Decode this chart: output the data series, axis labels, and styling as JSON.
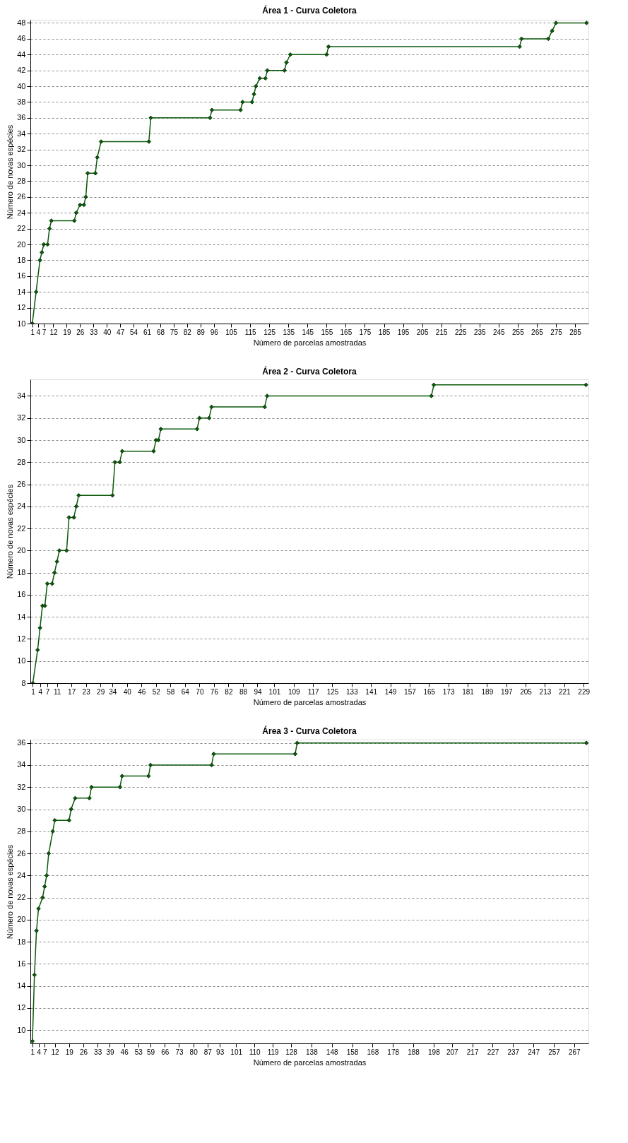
{
  "chart_data": [
    {
      "type": "line",
      "title": "Área 1 - Curva Coletora",
      "xlabel": "Número de parcelas amostradas",
      "ylabel": "Número de novas espécies",
      "marker": "diamond",
      "line_style": "solid",
      "grid": "y",
      "xlim": [
        0,
        292
      ],
      "ylim": [
        10,
        48.4
      ],
      "xticks": [
        1,
        4,
        7,
        12,
        19,
        26,
        33,
        40,
        47,
        54,
        61,
        68,
        75,
        82,
        89,
        96,
        105,
        115,
        125,
        135,
        145,
        155,
        165,
        175,
        185,
        195,
        205,
        215,
        225,
        235,
        245,
        255,
        265,
        275,
        285
      ],
      "yticks": [
        10,
        12,
        14,
        16,
        18,
        20,
        22,
        24,
        26,
        28,
        30,
        32,
        34,
        36,
        38,
        40,
        42,
        44,
        46,
        48
      ],
      "series": [
        {
          "color": "#0b5a0b",
          "x": [
            1,
            3,
            5,
            6,
            7,
            9,
            10,
            11,
            23,
            24,
            26,
            28,
            29,
            30,
            34,
            35,
            37,
            62,
            63,
            94,
            95,
            110,
            111,
            116,
            117,
            118,
            120,
            123,
            124,
            133,
            134,
            136,
            155,
            156,
            256,
            257,
            271,
            273,
            275,
            291
          ],
          "values": [
            10,
            14,
            18,
            19,
            20,
            20,
            22,
            23,
            23,
            24,
            25,
            25,
            26,
            29,
            29,
            31,
            33,
            33,
            36,
            36,
            37,
            37,
            38,
            38,
            39,
            40,
            41,
            41,
            42,
            42,
            43,
            44,
            44,
            45,
            45,
            46,
            46,
            47,
            48,
            48
          ]
        }
      ]
    },
    {
      "type": "line",
      "title": "Área 2 - Curva Coletora",
      "xlabel": "Número de parcelas amostradas",
      "ylabel": "Número de novas espécies",
      "marker": "diamond",
      "line_style": "solid",
      "grid": "y",
      "xlim": [
        0,
        231
      ],
      "ylim": [
        8,
        35.5
      ],
      "xticks": [
        1,
        4,
        7,
        11,
        17,
        23,
        29,
        34,
        40,
        46,
        52,
        58,
        64,
        70,
        76,
        82,
        88,
        94,
        101,
        109,
        117,
        125,
        133,
        141,
        149,
        157,
        165,
        173,
        181,
        189,
        197,
        205,
        213,
        221,
        229
      ],
      "yticks": [
        8,
        10,
        12,
        14,
        16,
        18,
        20,
        22,
        24,
        26,
        28,
        30,
        32,
        34
      ],
      "series": [
        {
          "color": "#0b5a0b",
          "x": [
            1,
            3,
            4,
            5,
            6,
            7,
            9,
            10,
            11,
            12,
            15,
            16,
            18,
            19,
            20,
            34,
            35,
            37,
            38,
            51,
            52,
            53,
            54,
            69,
            70,
            74,
            75,
            97,
            98,
            166,
            167,
            230
          ],
          "values": [
            8,
            11,
            13,
            15,
            15,
            17,
            17,
            18,
            19,
            20,
            20,
            23,
            23,
            24,
            25,
            25,
            28,
            28,
            29,
            29,
            30,
            30,
            31,
            31,
            32,
            32,
            33,
            33,
            34,
            34,
            35,
            35
          ]
        }
      ]
    },
    {
      "type": "line",
      "title": "Área 3 - Curva Coletora",
      "xlabel": "Número de parcelas amostradas",
      "ylabel": "Número de novas espécies",
      "marker": "diamond",
      "line_style": "solid",
      "grid": "y",
      "xlim": [
        0,
        274
      ],
      "ylim": [
        8.8,
        36.3
      ],
      "xticks": [
        1,
        4,
        7,
        12,
        19,
        26,
        33,
        39,
        46,
        53,
        59,
        66,
        73,
        80,
        87,
        93,
        101,
        110,
        119,
        128,
        138,
        148,
        158,
        168,
        178,
        188,
        198,
        207,
        217,
        227,
        237,
        247,
        257,
        267
      ],
      "yticks": [
        10,
        12,
        14,
        16,
        18,
        20,
        22,
        24,
        26,
        28,
        30,
        32,
        34,
        36
      ],
      "series": [
        {
          "color": "#0b5a0b",
          "x": [
            1,
            2,
            3,
            4,
            6,
            7,
            8,
            9,
            11,
            12,
            19,
            20,
            22,
            29,
            30,
            44,
            45,
            58,
            59,
            89,
            90,
            130,
            131,
            273
          ],
          "values": [
            9,
            15,
            19,
            21,
            22,
            23,
            24,
            26,
            28,
            29,
            29,
            30,
            31,
            31,
            32,
            32,
            33,
            33,
            34,
            34,
            35,
            35,
            36,
            36
          ]
        }
      ]
    }
  ]
}
